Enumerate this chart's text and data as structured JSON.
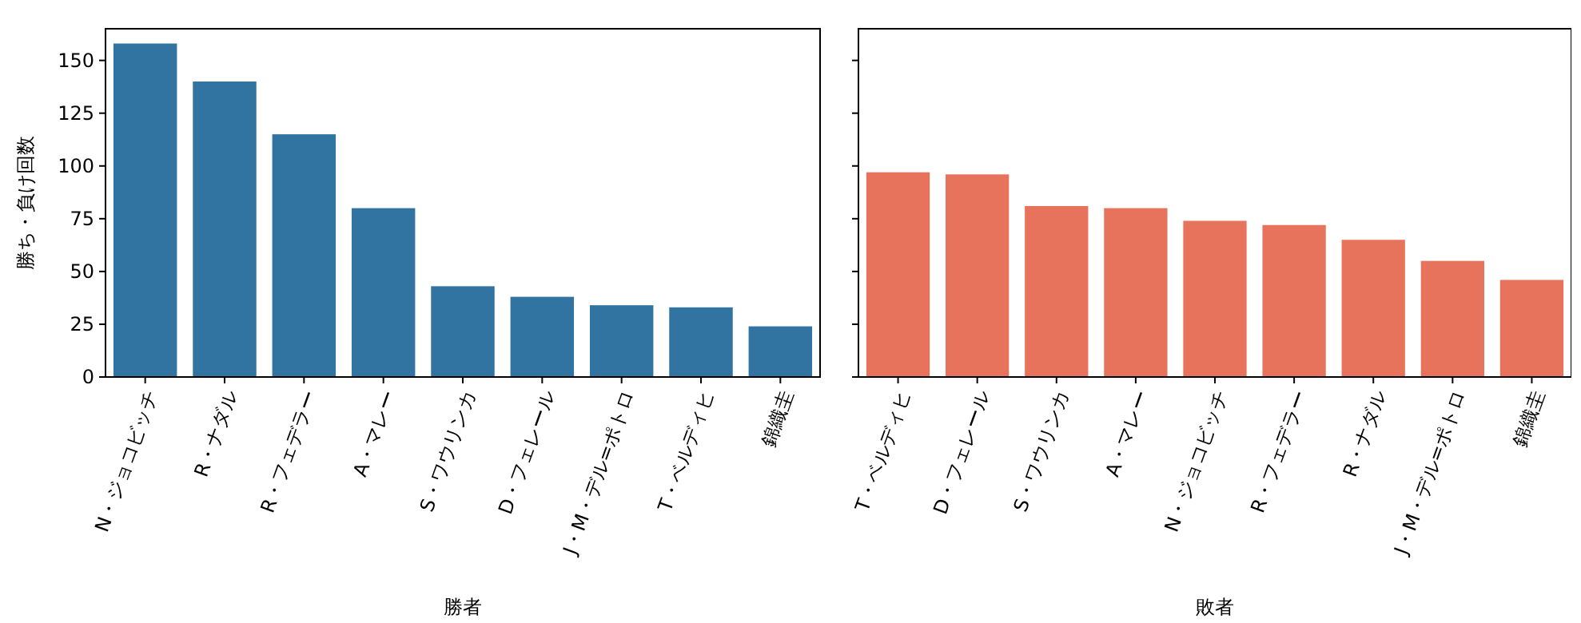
{
  "chart_data": [
    {
      "type": "bar",
      "xlabel": "勝者",
      "ylabel": "勝ち・負け回数",
      "categories": [
        "N・ジョコビッチ",
        "R・ナダル",
        "R・フェデラー",
        "A・マレー",
        "S・ワウリンカ",
        "D・フェレール",
        "J・M・デル=ポトロ",
        "T・ベルディヒ",
        "錦織圭"
      ],
      "values": [
        158,
        140,
        115,
        80,
        43,
        38,
        34,
        33,
        24
      ],
      "color": "#3274a1",
      "ylim": [
        0,
        165
      ],
      "yticks": [
        0,
        25,
        50,
        75,
        100,
        125,
        150
      ]
    },
    {
      "type": "bar",
      "xlabel": "敗者",
      "categories": [
        "T・ベルディヒ",
        "D・フェレール",
        "S・ワウリンカ",
        "A・マレー",
        "N・ジョコビッチ",
        "R・フェデラー",
        "R・ナダル",
        "J・M・デル=ポトロ",
        "錦織圭"
      ],
      "values": [
        97,
        96,
        81,
        80,
        74,
        72,
        65,
        55,
        46
      ],
      "color": "#e8735c",
      "ylim": [
        0,
        165
      ],
      "yticks": [
        0,
        25,
        50,
        75,
        100,
        125,
        150
      ],
      "tick_labels": "x"
    }
  ]
}
